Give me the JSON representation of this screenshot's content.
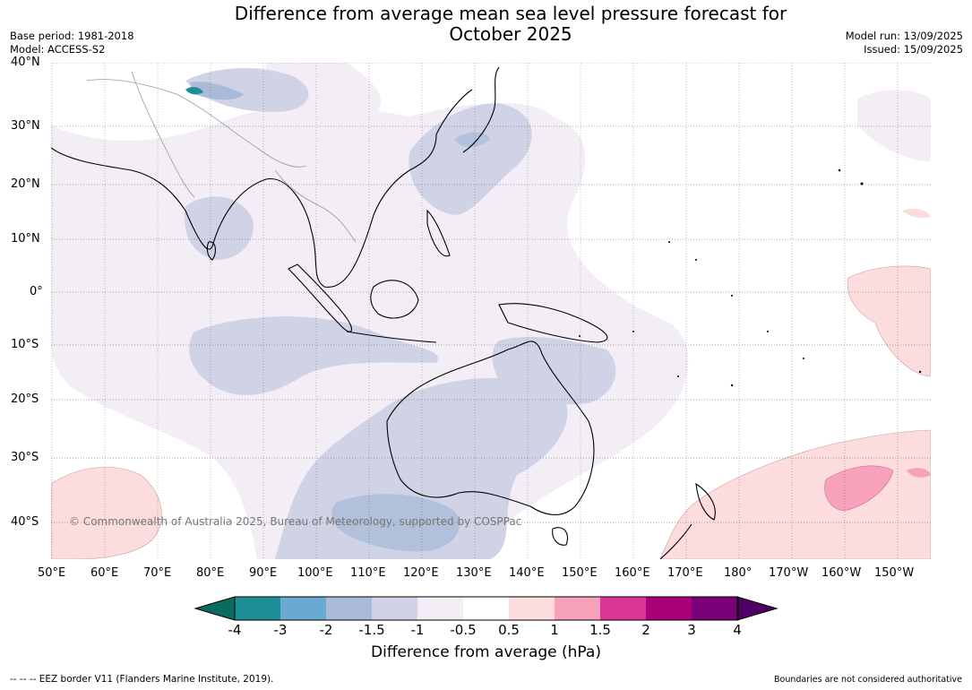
{
  "header": {
    "title_line1": "Difference from average mean sea level pressure forecast for",
    "title_line2": "October 2025",
    "base_period": "Base period: 1981-2018",
    "model": "Model: ACCESS-S2",
    "model_run": "Model run: 13/09/2025",
    "issued": "Issued: 15/09/2025"
  },
  "map": {
    "lat_labels": [
      "40°N",
      "30°N",
      "20°N",
      "10°N",
      "0°",
      "10°S",
      "20°S",
      "30°S",
      "40°S"
    ],
    "lon_labels": [
      "50°E",
      "60°E",
      "70°E",
      "80°E",
      "90°E",
      "100°E",
      "110°E",
      "120°E",
      "130°E",
      "140°E",
      "150°E",
      "160°E",
      "170°E",
      "180°",
      "170°W",
      "160°W",
      "150°W"
    ],
    "copyright": "© Commonwealth of Australia 2025, Bureau of Meteorology, supported by COSPPac"
  },
  "colorbar": {
    "ticks": [
      "-4",
      "-3",
      "-2",
      "-1.5",
      "-1",
      "-0.5",
      "0.5",
      "1",
      "1.5",
      "2",
      "3",
      "4"
    ],
    "colors": {
      "below_min": "#0b6b5f",
      "bins": [
        "#1f8f97",
        "#6aa9d1",
        "#a9bbd8",
        "#d0d3e6",
        "#f3eef5",
        "#ffffff",
        "#fcdcdc",
        "#f7a1bb",
        "#dd3597",
        "#aa0077",
        "#7a0077"
      ],
      "above_max": "#4e0066"
    },
    "label": "Difference from average (hPa)"
  },
  "footer": {
    "eez": "--  --  -- EEZ border V11 (Flanders Marine Institute, 2019).",
    "boundaries": "Boundaries are not considered authoritative"
  }
}
